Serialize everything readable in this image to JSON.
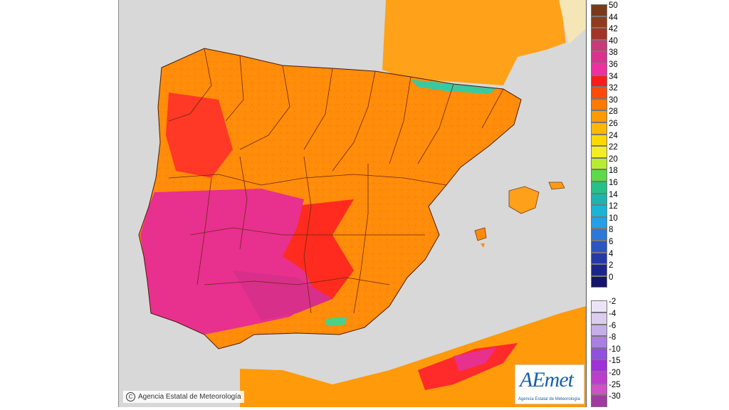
{
  "copyright": "Agencia Estatal de Meteorología",
  "logo": {
    "brand": "AEmet",
    "subtitle": "Agencia Estatal de Meteorología"
  },
  "legend": {
    "positive": [
      {
        "label": "50",
        "color": "#7a3a1a"
      },
      {
        "label": "44",
        "color": "#8f3b1f"
      },
      {
        "label": "42",
        "color": "#a53226"
      },
      {
        "label": "40",
        "color": "#c83a7a"
      },
      {
        "label": "38",
        "color": "#d9338f"
      },
      {
        "label": "36",
        "color": "#ee2fa0"
      },
      {
        "label": "34",
        "color": "#ff1a1a"
      },
      {
        "label": "32",
        "color": "#ff4a0a"
      },
      {
        "label": "30",
        "color": "#ff7a00"
      },
      {
        "label": "28",
        "color": "#ff9a00"
      },
      {
        "label": "26",
        "color": "#ffb800"
      },
      {
        "label": "24",
        "color": "#ffd800"
      },
      {
        "label": "22",
        "color": "#f2ee20"
      },
      {
        "label": "20",
        "color": "#b8ec30"
      },
      {
        "label": "18",
        "color": "#5ed94a"
      },
      {
        "label": "16",
        "color": "#26c08a"
      },
      {
        "label": "14",
        "color": "#1cb4b0"
      },
      {
        "label": "12",
        "color": "#19b4d6"
      },
      {
        "label": "10",
        "color": "#22a0e6"
      },
      {
        "label": "8",
        "color": "#2a78d8"
      },
      {
        "label": "6",
        "color": "#2a55c2"
      },
      {
        "label": "4",
        "color": "#233aa8"
      },
      {
        "label": "2",
        "color": "#1c268a"
      },
      {
        "label": "0",
        "color": "#14146a"
      }
    ],
    "negative": [
      {
        "label": "-2",
        "color": "#ece4f6"
      },
      {
        "label": "-4",
        "color": "#dccdf0"
      },
      {
        "label": "-6",
        "color": "#c6aee8"
      },
      {
        "label": "-8",
        "color": "#a97fe0"
      },
      {
        "label": "-10",
        "color": "#9050e0"
      },
      {
        "label": "-15",
        "color": "#a030d8"
      },
      {
        "label": "-20",
        "color": "#c03ad0"
      },
      {
        "label": "-25",
        "color": "#d050c8"
      },
      {
        "label": "-30",
        "color": "#a03aa0"
      }
    ]
  }
}
